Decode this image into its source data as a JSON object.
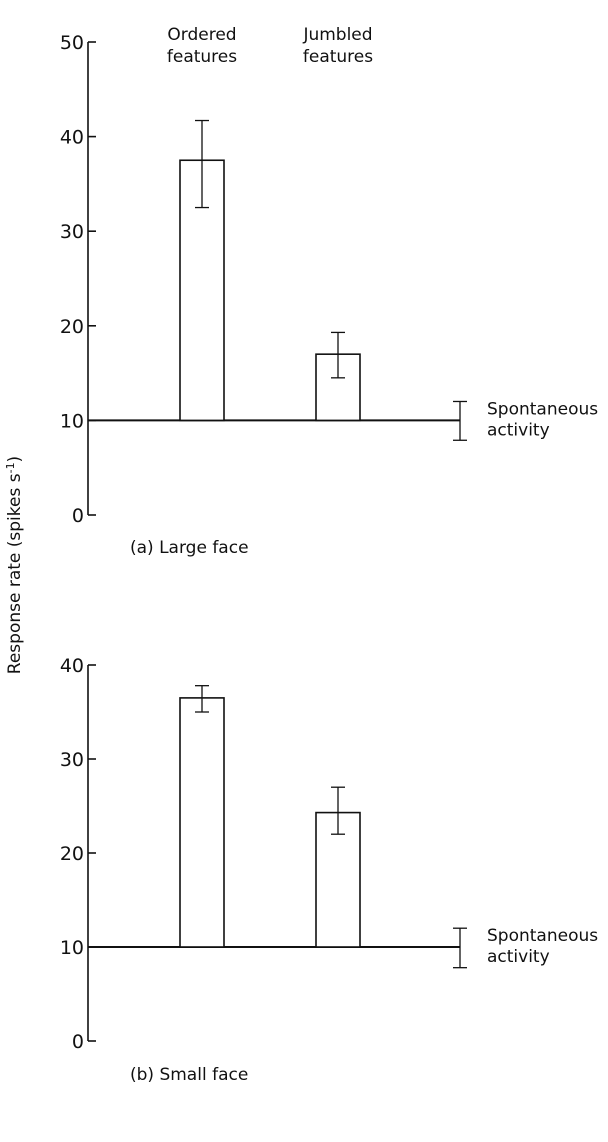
{
  "figure": {
    "y_axis_label": "Response rate (spikes s",
    "y_axis_label_superscript": "-1",
    "y_axis_label_close": ")"
  },
  "chart_data": [
    {
      "type": "bar",
      "title": "(a) Large face",
      "categories": [
        "Ordered\nfeatures",
        "Jumbled\nfeatures"
      ],
      "values": [
        37.5,
        17.0
      ],
      "error_bars": [
        [
          32.5,
          41.7
        ],
        [
          14.5,
          19.3
        ]
      ],
      "ylabel": "Response rate (spikes s-1)",
      "ylim": [
        0,
        50
      ],
      "yticks": [
        0,
        10,
        20,
        30,
        40,
        50
      ],
      "bar_base": 10,
      "reference_line": {
        "label": "Spontaneous\nactivity",
        "value": 10,
        "error": [
          7.9,
          12.0
        ]
      },
      "grid": false,
      "colors": {
        "bar_fill": "#ffffff",
        "stroke": "#111111"
      }
    },
    {
      "type": "bar",
      "title": "(b) Small face",
      "categories": [
        "Ordered\nfeatures",
        "Jumbled\nfeatures"
      ],
      "values": [
        36.5,
        24.3
      ],
      "error_bars": [
        [
          35.0,
          37.8
        ],
        [
          22.0,
          27.0
        ]
      ],
      "ylabel": "Response rate (spikes s-1)",
      "ylim": [
        0,
        40
      ],
      "yticks": [
        0,
        10,
        20,
        30,
        40
      ],
      "bar_base": 10,
      "reference_line": {
        "label": "Spontaneous\nactivity",
        "value": 10,
        "error": [
          7.8,
          12.0
        ]
      },
      "grid": false,
      "colors": {
        "bar_fill": "#ffffff",
        "stroke": "#111111"
      }
    }
  ]
}
